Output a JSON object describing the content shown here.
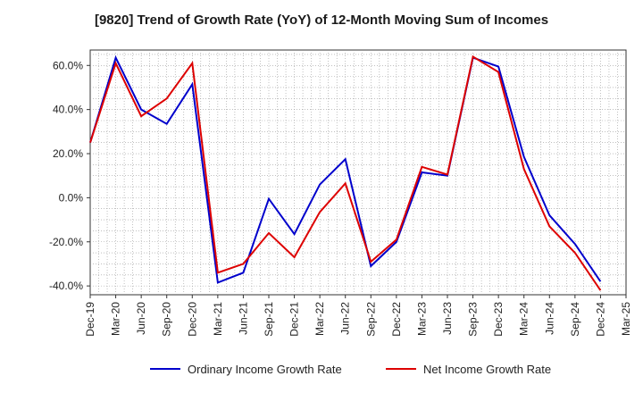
{
  "chart_data": {
    "type": "line",
    "title": "[9820]  Trend of Growth Rate (YoY) of 12-Month Moving Sum of Incomes",
    "xlabel": "",
    "ylabel": "",
    "x": [
      "Dec-19",
      "Mar-20",
      "Jun-20",
      "Sep-20",
      "Dec-20",
      "Mar-21",
      "Jun-21",
      "Sep-21",
      "Dec-21",
      "Mar-22",
      "Jun-22",
      "Sep-22",
      "Dec-22",
      "Mar-23",
      "Jun-23",
      "Sep-23",
      "Dec-23",
      "Mar-24",
      "Jun-24",
      "Sep-24",
      "Dec-24"
    ],
    "x_ticks": [
      "Dec-19",
      "Mar-20",
      "Jun-20",
      "Sep-20",
      "Dec-20",
      "Mar-21",
      "Jun-21",
      "Sep-21",
      "Dec-21",
      "Mar-22",
      "Jun-22",
      "Sep-22",
      "Dec-22",
      "Mar-23",
      "Jun-23",
      "Sep-23",
      "Dec-23",
      "Mar-24",
      "Jun-24",
      "Sep-24",
      "Dec-24",
      "Mar-25"
    ],
    "y_ticks": [
      "60.0%",
      "40.0%",
      "20.0%",
      "0.0%",
      "-20.0%",
      "-40.0%"
    ],
    "ylim": [
      -44,
      67
    ],
    "grid": true,
    "legend_position": "bottom",
    "series": [
      {
        "name": "Ordinary Income Growth Rate",
        "color": "#0000cc",
        "values": [
          25.0,
          63.5,
          40.0,
          33.5,
          51.5,
          -38.5,
          -34.0,
          -0.5,
          -16.5,
          6.0,
          17.5,
          -31.0,
          -20.0,
          11.5,
          10.0,
          63.5,
          59.5,
          18.5,
          -8.0,
          -21.0,
          -38.0
        ]
      },
      {
        "name": "Net Income Growth Rate",
        "color": "#dd0000",
        "values": [
          25.0,
          61.0,
          37.0,
          45.0,
          61.0,
          -34.0,
          -30.0,
          -16.0,
          -27.0,
          -6.5,
          6.5,
          -29.0,
          -19.0,
          14.0,
          10.5,
          64.0,
          57.0,
          13.0,
          -13.0,
          -25.0,
          -42.0
        ]
      }
    ]
  }
}
